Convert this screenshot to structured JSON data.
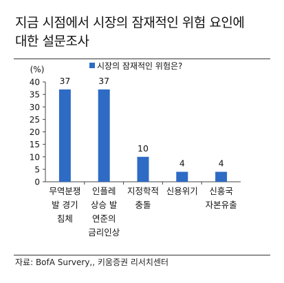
{
  "title_lines": [
    "지금  시점에서  시장의  잠재적인  위험  요인에",
    "대한  설문조사"
  ],
  "source": "자료: BofA Survery,, 키움증권 리서치센터",
  "colors": {
    "bar": "#2e6bc5",
    "axis": "#444444",
    "text": "#111111"
  },
  "chart_data": {
    "type": "bar",
    "ylabel": "(%)",
    "ylim": [
      0,
      40
    ],
    "yticks": [
      0,
      5,
      10,
      15,
      20,
      25,
      30,
      35,
      40
    ],
    "grid": false,
    "legend": {
      "position": "top",
      "entries": [
        "시장의 잠재적인 위험은?"
      ]
    },
    "categories": [
      [
        "무역분쟁",
        "발 경기",
        "침체"
      ],
      [
        "인플레",
        "상승 발",
        "연준의",
        "금리인상"
      ],
      [
        "지정학적",
        "충돌"
      ],
      [
        "신용위기"
      ],
      [
        "신흥국",
        "자본유출"
      ]
    ],
    "series": [
      {
        "name": "시장의 잠재적인 위험은?",
        "values": [
          37,
          37,
          10,
          4,
          4
        ]
      }
    ],
    "data_labels": [
      "37",
      "37",
      "10",
      "4",
      "4"
    ]
  }
}
